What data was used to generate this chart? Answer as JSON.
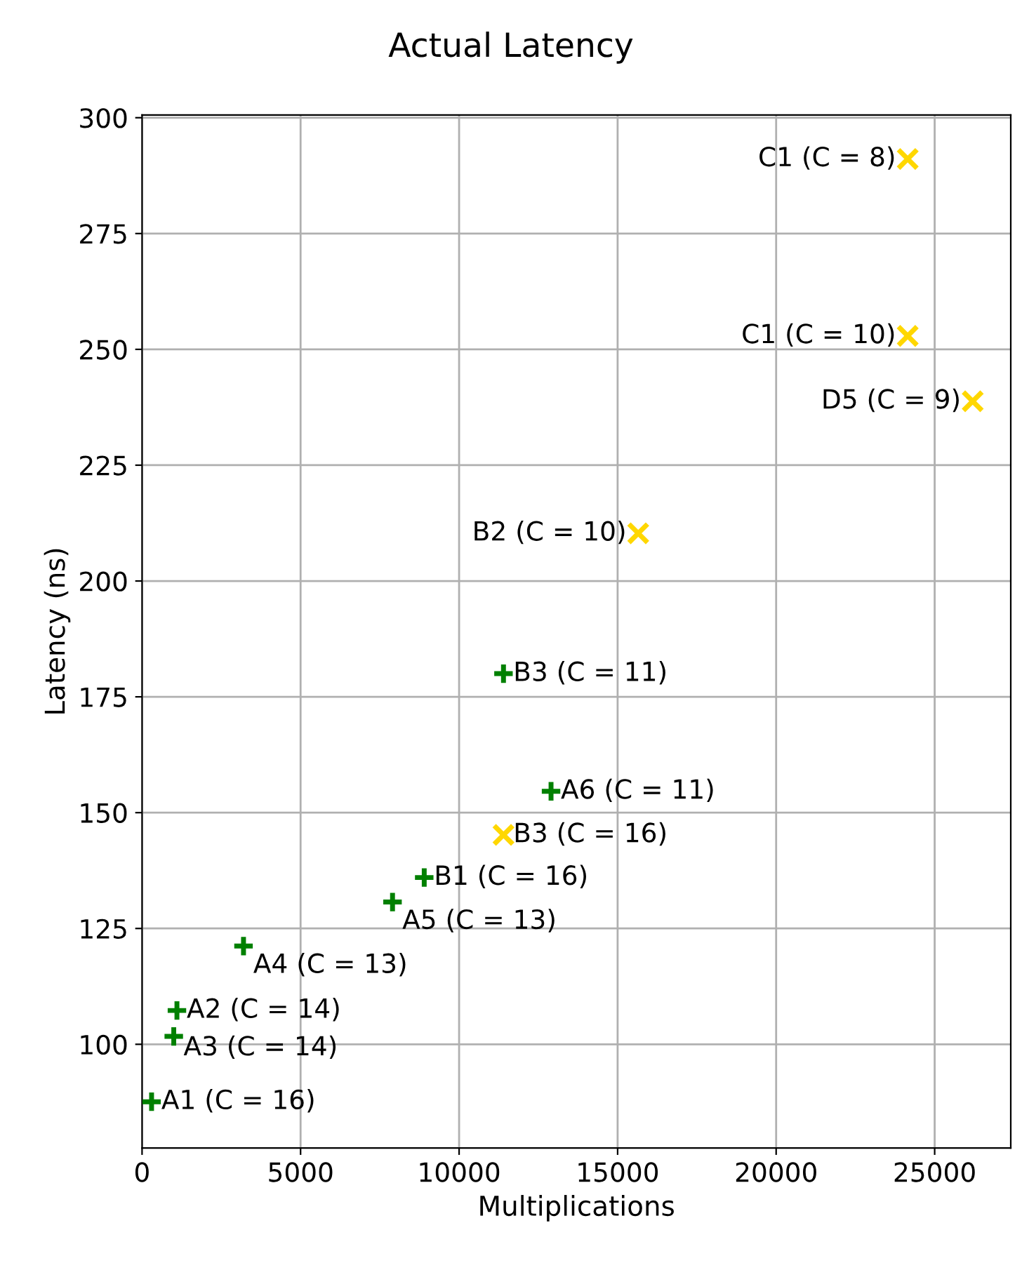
{
  "chart_data": {
    "type": "scatter",
    "title": "Actual Latency",
    "xlabel": "Multiplications",
    "ylabel": "Latency (ns)",
    "series": [
      {
        "color": "#008000",
        "marker": "plus",
        "x": [
          300,
          1100,
          1000,
          3200,
          7900,
          8900,
          12900,
          11400
        ],
        "values": [
          87.6,
          107.3,
          101.7,
          121.2,
          130.7,
          136.0,
          154.6,
          180.0
        ]
      },
      {
        "color": "#ffd700",
        "marker": "cross",
        "x": [
          11400,
          15650,
          24150,
          26200,
          24150
        ],
        "values": [
          145.2,
          210.3,
          252.9,
          238.8,
          291.1
        ]
      }
    ],
    "annotations": [
      {
        "text": "A1 (C = 16)",
        "x": 300,
        "y": 87.6
      },
      {
        "text": "A2 (C = 14)",
        "x": 1100,
        "y": 107.3
      },
      {
        "text": "A3 (C = 14)",
        "x": 1000,
        "y": 101.7
      },
      {
        "text": "A4 (C = 13)",
        "x": 3200,
        "y": 121.2
      },
      {
        "text": "A5 (C = 13)",
        "x": 7900,
        "y": 130.7
      },
      {
        "text": "B1 (C = 16)",
        "x": 8900,
        "y": 136.0
      },
      {
        "text": "A6 (C = 11)",
        "x": 12900,
        "y": 154.6
      },
      {
        "text": "B3 (C = 11)",
        "x": 11400,
        "y": 180.0
      },
      {
        "text": "B3 (C = 16)",
        "x": 11400,
        "y": 145.2
      },
      {
        "text": "B2 (C = 10)",
        "x": 15650,
        "y": 210.3
      },
      {
        "text": "C1 (C = 10)",
        "x": 24150,
        "y": 252.9
      },
      {
        "text": "D5 (C = 9)",
        "x": 26200,
        "y": 238.8
      },
      {
        "text": "C1 (C = 8)",
        "x": 24150,
        "y": 291.1
      }
    ],
    "xlim": [
      0,
      27400
    ],
    "ylim": [
      77.6,
      300.6
    ],
    "xticks": [
      0,
      5000,
      10000,
      15000,
      20000,
      25000
    ],
    "yticks": [
      100,
      125,
      150,
      175,
      200,
      225,
      250,
      275,
      300
    ],
    "grid": true,
    "legend": false
  }
}
